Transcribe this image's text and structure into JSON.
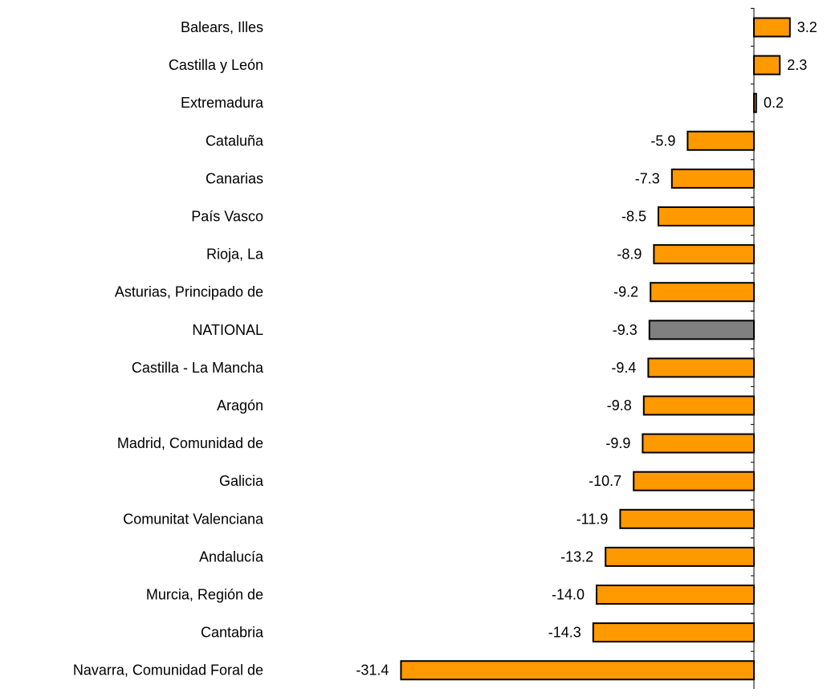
{
  "chart_data": {
    "type": "bar",
    "orientation": "horizontal",
    "categories": [
      "Balears, Illes",
      "Castilla y León",
      "Extremadura",
      "Cataluña",
      "Canarias",
      "País Vasco",
      "Rioja, La",
      "Asturias, Principado de",
      "NATIONAL",
      "Castilla - La Mancha",
      "Aragón",
      "Madrid, Comunidad de",
      "Galicia",
      "Comunitat Valenciana",
      "Andalucía",
      "Murcia, Región de",
      "Cantabria",
      "Navarra, Comunidad Foral de"
    ],
    "values": [
      3.2,
      2.3,
      0.2,
      -5.9,
      -7.3,
      -8.5,
      -8.9,
      -9.2,
      -9.3,
      -9.4,
      -9.8,
      -9.9,
      -10.7,
      -11.9,
      -13.2,
      -14.0,
      -14.3,
      -31.4
    ],
    "value_labels": [
      "3.2",
      "2.3",
      "0.2",
      "-5.9",
      "-7.3",
      "-8.5",
      "-8.9",
      "-9.2",
      "-9.3",
      "-9.4",
      "-9.8",
      "-9.9",
      "-10.7",
      "-11.9",
      "-13.2",
      "-14.0",
      "-14.3",
      "-31.4"
    ],
    "highlight_category": "NATIONAL",
    "colors": {
      "bar": "#ff9900",
      "highlight": "#808080",
      "stroke": "#000000"
    },
    "title": "",
    "xlabel": "",
    "ylabel": "",
    "xlim": [
      -31.4,
      3.2
    ],
    "grid": false,
    "legend": "none"
  }
}
